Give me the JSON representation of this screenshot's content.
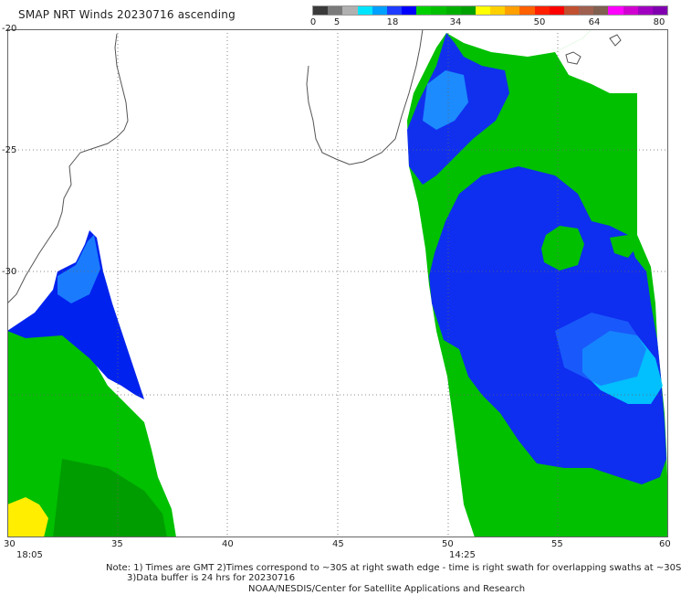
{
  "title": "SMAP NRT Winds 20230716 ascending",
  "colorbar": {
    "labels": [
      "0",
      "5",
      "18",
      "34",
      "50",
      "64",
      "80"
    ],
    "segments": [
      "#3a3a3a",
      "#7a7a7a",
      "#b0b0b0",
      "#00e5ff",
      "#00a0ff",
      "#1e3cff",
      "#0000ff",
      "#00d000",
      "#00c000",
      "#00b000",
      "#00a000",
      "#ffff00",
      "#ffd000",
      "#ffa000",
      "#ff6000",
      "#ff2000",
      "#ff0000",
      "#c05030",
      "#a06050",
      "#806050",
      "#ff00ff",
      "#d000d0",
      "#a000c0",
      "#8000b0"
    ]
  },
  "axes": {
    "lon_ticks": [
      "30",
      "35",
      "40",
      "45",
      "50",
      "55",
      "60"
    ],
    "lat_ticks": [
      "-20",
      "-25",
      "-30"
    ]
  },
  "swath_times": [
    "18:05",
    "14:25"
  ],
  "note": {
    "line1": "Note: 1) Times are GMT 2)Times correspond to ~30S at right swath edge - time is right swath for overlapping swaths at ~30S",
    "line2": "3)Data buffer is 24 hrs for 20230716",
    "line3": "NOAA/NESDIS/Center for Satellite Applications and Research"
  },
  "colors": {
    "land_outline": "#555555",
    "ocean_background": "#ffffff",
    "grid": "#666666",
    "wind_low": "#0000ff",
    "wind_light": "#00c8ff",
    "wind_moderate": "#00c000",
    "wind_strong": "#ffff00"
  }
}
